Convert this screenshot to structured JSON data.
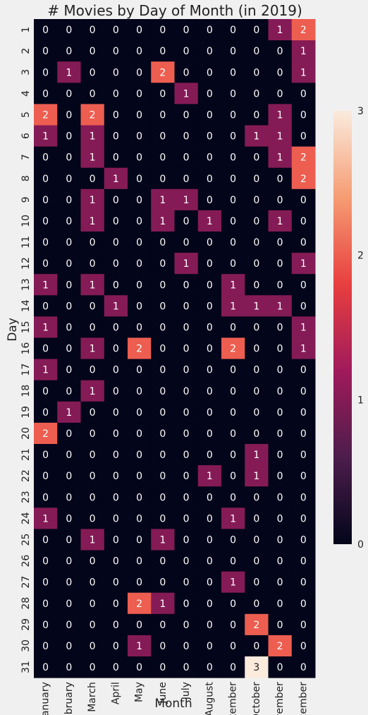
{
  "chart_data": {
    "type": "heatmap",
    "title": "# Movies by Day of Month (in 2019)",
    "xlabel": "Month",
    "ylabel": "Day",
    "columns": [
      "January",
      "February",
      "March",
      "April",
      "May",
      "June",
      "July",
      "August",
      "September",
      "October",
      "November",
      "December"
    ],
    "rows": [
      "1",
      "2",
      "3",
      "4",
      "5",
      "6",
      "7",
      "8",
      "9",
      "10",
      "11",
      "12",
      "13",
      "14",
      "15",
      "16",
      "17",
      "18",
      "19",
      "20",
      "21",
      "22",
      "23",
      "24",
      "25",
      "26",
      "27",
      "28",
      "29",
      "30",
      "31"
    ],
    "values": [
      [
        0,
        0,
        0,
        0,
        0,
        0,
        0,
        0,
        0,
        0,
        1,
        2
      ],
      [
        0,
        0,
        0,
        0,
        0,
        0,
        0,
        0,
        0,
        0,
        0,
        1
      ],
      [
        0,
        1,
        0,
        0,
        0,
        2,
        0,
        0,
        0,
        0,
        0,
        1
      ],
      [
        0,
        0,
        0,
        0,
        0,
        0,
        1,
        0,
        0,
        0,
        0,
        0
      ],
      [
        2,
        0,
        2,
        0,
        0,
        0,
        0,
        0,
        0,
        0,
        1,
        0
      ],
      [
        1,
        0,
        1,
        0,
        0,
        0,
        0,
        0,
        0,
        1,
        1,
        0
      ],
      [
        0,
        0,
        1,
        0,
        0,
        0,
        0,
        0,
        0,
        0,
        1,
        2
      ],
      [
        0,
        0,
        0,
        1,
        0,
        0,
        0,
        0,
        0,
        0,
        0,
        2
      ],
      [
        0,
        0,
        1,
        0,
        0,
        1,
        1,
        0,
        0,
        0,
        0,
        0
      ],
      [
        0,
        0,
        1,
        0,
        0,
        1,
        0,
        1,
        0,
        0,
        1,
        0
      ],
      [
        0,
        0,
        0,
        0,
        0,
        0,
        0,
        0,
        0,
        0,
        0,
        0
      ],
      [
        0,
        0,
        0,
        0,
        0,
        0,
        1,
        0,
        0,
        0,
        0,
        1
      ],
      [
        1,
        0,
        1,
        0,
        0,
        0,
        0,
        0,
        1,
        0,
        0,
        0
      ],
      [
        0,
        0,
        0,
        1,
        0,
        0,
        0,
        0,
        1,
        1,
        1,
        0
      ],
      [
        1,
        0,
        0,
        0,
        0,
        0,
        0,
        0,
        0,
        0,
        0,
        1
      ],
      [
        0,
        0,
        1,
        0,
        2,
        0,
        0,
        0,
        2,
        0,
        0,
        1
      ],
      [
        1,
        0,
        0,
        0,
        0,
        0,
        0,
        0,
        0,
        0,
        0,
        0
      ],
      [
        0,
        0,
        1,
        0,
        0,
        0,
        0,
        0,
        0,
        0,
        0,
        0
      ],
      [
        0,
        1,
        0,
        0,
        0,
        0,
        0,
        0,
        0,
        0,
        0,
        0
      ],
      [
        2,
        0,
        0,
        0,
        0,
        0,
        0,
        0,
        0,
        0,
        0,
        0
      ],
      [
        0,
        0,
        0,
        0,
        0,
        0,
        0,
        0,
        0,
        1,
        0,
        0
      ],
      [
        0,
        0,
        0,
        0,
        0,
        0,
        0,
        1,
        0,
        1,
        0,
        0
      ],
      [
        0,
        0,
        0,
        0,
        0,
        0,
        0,
        0,
        0,
        0,
        0,
        0
      ],
      [
        1,
        0,
        0,
        0,
        0,
        0,
        0,
        0,
        1,
        0,
        0,
        0
      ],
      [
        0,
        0,
        1,
        0,
        0,
        1,
        0,
        0,
        0,
        0,
        0,
        0
      ],
      [
        0,
        0,
        0,
        0,
        0,
        0,
        0,
        0,
        0,
        0,
        0,
        0
      ],
      [
        0,
        0,
        0,
        0,
        0,
        0,
        0,
        0,
        1,
        0,
        0,
        0
      ],
      [
        0,
        0,
        0,
        0,
        2,
        1,
        0,
        0,
        0,
        0,
        0,
        0
      ],
      [
        0,
        0,
        0,
        0,
        0,
        0,
        0,
        0,
        0,
        2,
        0,
        0
      ],
      [
        0,
        0,
        0,
        0,
        1,
        0,
        0,
        0,
        0,
        0,
        2,
        0
      ],
      [
        0,
        0,
        0,
        0,
        0,
        0,
        0,
        0,
        0,
        3,
        0,
        0
      ]
    ],
    "colorbar": {
      "min": 0,
      "max": 3,
      "ticks": [
        "0",
        "1",
        "2",
        "3"
      ]
    },
    "colors": {
      "background": "#f0f0f0",
      "text_dark": "#222222",
      "text_light": "#ffffff",
      "scale": [
        "#03051a",
        "#4c1d4b",
        "#a11a5b",
        "#e83f3f",
        "#f69c73",
        "#faebdd"
      ]
    }
  }
}
